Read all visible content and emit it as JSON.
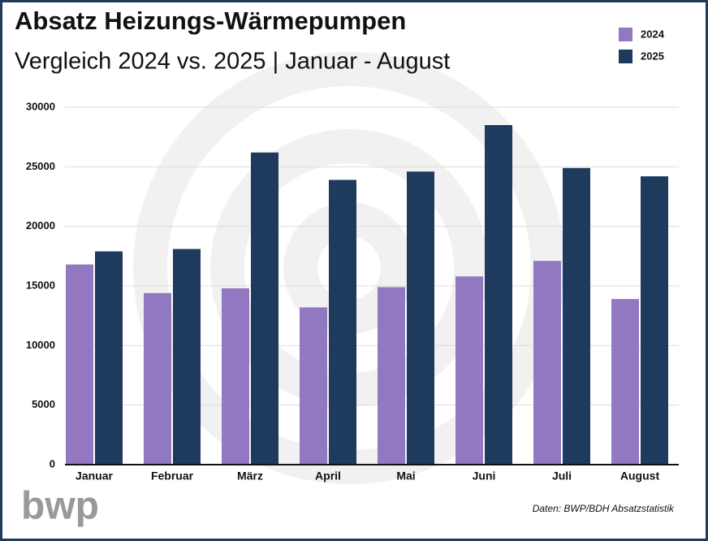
{
  "chart_data": {
    "type": "bar",
    "title": "Absatz Heizungs-Wärmepumpen",
    "subtitle": "Vergleich 2024 vs. 2025 | Januar - August",
    "categories": [
      "Januar",
      "Februar",
      "März",
      "April",
      "Mai",
      "Juni",
      "Juli",
      "August"
    ],
    "series": [
      {
        "name": "2024",
        "color": "#9278c1",
        "values": [
          16800,
          14400,
          14800,
          13200,
          14900,
          15800,
          17100,
          13900
        ]
      },
      {
        "name": "2025",
        "color": "#1e3a5c",
        "values": [
          17900,
          18100,
          26200,
          23900,
          24600,
          28500,
          24900,
          24200
        ]
      }
    ],
    "ylim": [
      0,
      30000
    ],
    "yticks": [
      0,
      5000,
      10000,
      15000,
      20000,
      25000,
      30000
    ],
    "grid": true,
    "legend": "top-right",
    "source": "Daten: BWP/BDH Absatzstatistik",
    "logo": "bwp"
  }
}
